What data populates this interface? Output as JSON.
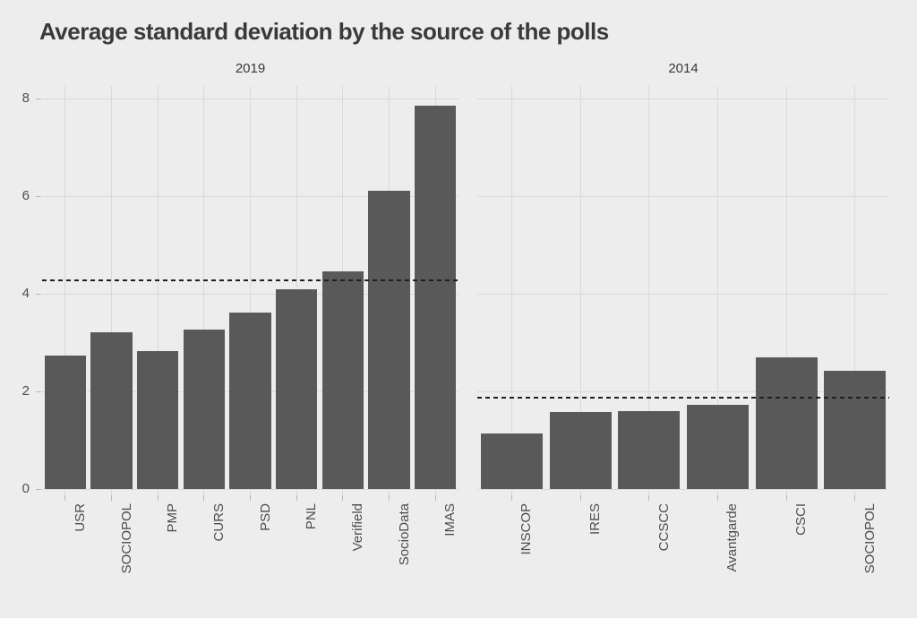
{
  "title": "Average standard deviation by the source of the polls",
  "colors": {
    "background": "#ededed",
    "bar": "#595959",
    "gridline": "#d9d9d9",
    "tick": "#b8b8b8",
    "axis_text": "#4d4d4d",
    "mean_line": "#1f1f1f",
    "title_text": "#3a3a3a"
  },
  "chart_data": {
    "type": "bar",
    "title": "Average standard deviation by the source of the polls",
    "xlabel": "",
    "ylabel": "",
    "ylim": [
      0,
      8.26
    ],
    "yticks": [
      0,
      2,
      4,
      6,
      8
    ],
    "grid": true,
    "legend": "none",
    "facet_layout": "two panels side by side, facet labels on top",
    "x_tick_label_rotation_deg": 90,
    "facets": [
      {
        "label": "2019",
        "categories": [
          "USR",
          "SOCIOPOL",
          "PMP",
          "CURS",
          "PSD",
          "PNL",
          "Verifield",
          "SocioData",
          "IMAS"
        ],
        "values": [
          2.73,
          3.21,
          2.83,
          3.27,
          3.61,
          4.09,
          4.46,
          6.11,
          7.85
        ],
        "mean_dashed_line": 4.28
      },
      {
        "label": "2014",
        "categories": [
          "INSCOP",
          "IRES",
          "CCSCC",
          "Avantgarde",
          "CSCI",
          "SOCIOPOL"
        ],
        "values": [
          1.14,
          1.58,
          1.6,
          1.72,
          2.7,
          2.42
        ],
        "mean_dashed_line": 1.87
      }
    ]
  }
}
